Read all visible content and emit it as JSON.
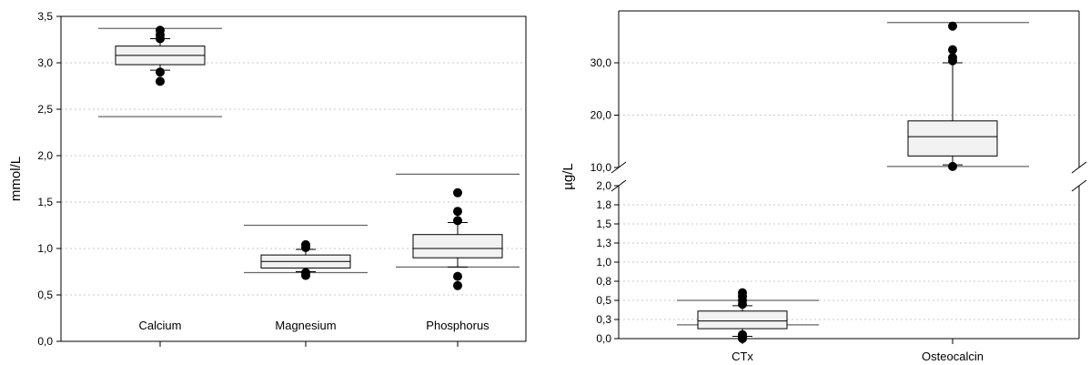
{
  "chart_data": [
    {
      "type": "box",
      "ylabel": "mmol/L",
      "ylim": [
        0,
        3.5
      ],
      "yticks": [
        "0,0",
        "0,5",
        "1,0",
        "1,5",
        "2,0",
        "2,5",
        "3,0",
        "3,5"
      ],
      "grid": "horizontal dotted",
      "categories": [
        "Calcium",
        "Magnesium",
        "Phosphorus"
      ],
      "boxes": [
        {
          "name": "Calcium",
          "whisker_low": 2.92,
          "q1": 2.98,
          "median": 3.08,
          "q3": 3.18,
          "whisker_high": 3.26,
          "outliers": [
            2.8,
            2.9,
            3.26,
            3.3,
            3.35
          ],
          "ref_low": 2.42,
          "ref_high": 3.37
        },
        {
          "name": "Magnesium",
          "whisker_low": 0.75,
          "q1": 0.79,
          "median": 0.86,
          "q3": 0.93,
          "whisker_high": 0.99,
          "outliers": [
            0.71,
            0.74,
            1.01,
            1.04
          ],
          "ref_low": 0.74,
          "ref_high": 1.25
        },
        {
          "name": "Phosphorus",
          "whisker_low": 0.8,
          "q1": 0.9,
          "median": 1.0,
          "q3": 1.15,
          "whisker_high": 1.28,
          "outliers": [
            0.6,
            0.7,
            1.3,
            1.4,
            1.6
          ],
          "ref_low": 0.8,
          "ref_high": 1.8
        }
      ]
    },
    {
      "type": "box",
      "ylabel": "µg/L",
      "axis_break": {
        "below": 2.0,
        "above": 10.0
      },
      "lower_ylim": [
        0,
        2.0
      ],
      "lower_yticks": [
        "0,0",
        "0,3",
        "0,5",
        "0,8",
        "1,0",
        "1,3",
        "1,5",
        "1,8",
        "2,0"
      ],
      "upper_ylim": [
        10,
        38
      ],
      "upper_yticks": [
        "10,0",
        "20,0",
        "30,0"
      ],
      "grid": "horizontal dotted",
      "categories": [
        "CTx",
        "Osteocalcin"
      ],
      "boxes": [
        {
          "name": "CTx",
          "whisker_low": 0.03,
          "q1": 0.13,
          "median": 0.23,
          "q3": 0.36,
          "whisker_high": 0.43,
          "outliers": [
            0.0,
            0.02,
            0.05,
            0.45,
            0.5,
            0.55,
            0.6
          ],
          "ref_low": 0.18,
          "ref_high": 0.5
        },
        {
          "name": "Osteocalcin",
          "whisker_low": 10.5,
          "q1": 12.2,
          "median": 15.9,
          "q3": 18.9,
          "whisker_high": 30.0,
          "outliers": [
            10.2,
            30.4,
            31.0,
            32.5,
            37.0
          ],
          "ref_low": 10.2,
          "ref_high": 37.7
        }
      ]
    }
  ]
}
